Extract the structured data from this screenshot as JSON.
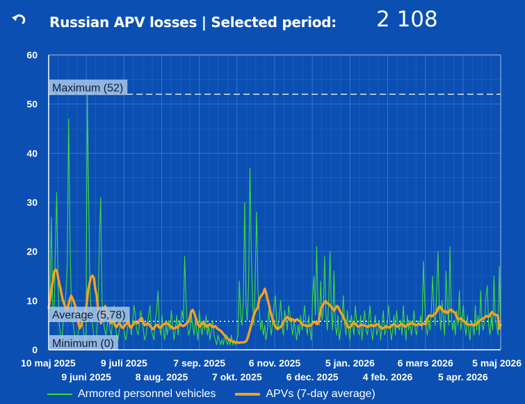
{
  "header": {
    "title": "Russian APV losses | Selected period:",
    "total": "2 108",
    "back_icon": "undo-arrow-icon"
  },
  "colors": {
    "background": "#0b4fb3",
    "daily_line": "#3ddc3a",
    "avg_line": "#f6a21d",
    "grid": "#3a78cf",
    "ref_label_bg": "#a9c5e6"
  },
  "chart_data": {
    "type": "line",
    "title": "",
    "xlabel": "",
    "ylabel": "",
    "ylim": [
      0,
      60
    ],
    "yticks": [
      "0",
      "10",
      "20",
      "30",
      "40",
      "50",
      "60"
    ],
    "date_range": [
      "2025-05-10",
      "2026-05-05"
    ],
    "xticks_row1": [
      {
        "date": "2025-05-10",
        "label": "10 maj 2025"
      },
      {
        "date": "2025-07-09",
        "label": "9 juli 2025"
      },
      {
        "date": "2025-09-07",
        "label": "7 sep. 2025"
      },
      {
        "date": "2025-11-06",
        "label": "6 nov. 2025"
      },
      {
        "date": "2026-01-05",
        "label": "5 jan. 2026"
      },
      {
        "date": "2026-03-06",
        "label": "6 mars 2026"
      },
      {
        "date": "2026-05-05",
        "label": "5 maj 2026"
      }
    ],
    "xticks_row2": [
      {
        "date": "2025-06-09",
        "label": "9 juni 2025"
      },
      {
        "date": "2025-08-08",
        "label": "8 aug. 2025"
      },
      {
        "date": "2025-10-07",
        "label": "7 okt. 2025"
      },
      {
        "date": "2025-12-06",
        "label": "6 dec. 2025"
      },
      {
        "date": "2026-02-04",
        "label": "4 feb. 2026"
      },
      {
        "date": "2026-04-05",
        "label": "5 apr. 2026"
      }
    ],
    "reference_lines": [
      {
        "name": "maximum",
        "label": "Maximum (52)",
        "value": 52,
        "style": "dashed"
      },
      {
        "name": "average",
        "label": "Average (5,78)",
        "value": 5.78,
        "style": "dotted"
      },
      {
        "name": "minimum",
        "label": "Minimum (0)",
        "value": 0,
        "style": "none"
      }
    ],
    "series": [
      {
        "name": "Armored personnel vehicles",
        "values": [
          9,
          12,
          27,
          8,
          6,
          20,
          32,
          14,
          5,
          3,
          2,
          6,
          8,
          12,
          18,
          47,
          22,
          9,
          6,
          4,
          2,
          1,
          3,
          5,
          8,
          6,
          4,
          2,
          3,
          52,
          31,
          12,
          7,
          5,
          2,
          1,
          3,
          8,
          22,
          31,
          10,
          6,
          4,
          3,
          5,
          8,
          4,
          3,
          6,
          9,
          5,
          3,
          2,
          4,
          6,
          8,
          5,
          3,
          2,
          4,
          7,
          5,
          3,
          6,
          9,
          7,
          4,
          3,
          5,
          8,
          6,
          4,
          2,
          3,
          5,
          7,
          9,
          4,
          3,
          2,
          6,
          8,
          12,
          5,
          3,
          7,
          4,
          2,
          5,
          3,
          6,
          4,
          8,
          5,
          2,
          4,
          7,
          3,
          6,
          5,
          8,
          6,
          19,
          10,
          5,
          3,
          4,
          7,
          5,
          3,
          6,
          4,
          2,
          8,
          5,
          3,
          6,
          4,
          7,
          3,
          5,
          2,
          4,
          6,
          3,
          2,
          1,
          3,
          2,
          1,
          2,
          1,
          3,
          2,
          1,
          2,
          1,
          3,
          1,
          2,
          1,
          2,
          3,
          14,
          7,
          5,
          10,
          30,
          9,
          6,
          14,
          37,
          20,
          9,
          5,
          16,
          28,
          12,
          8,
          4,
          6,
          3,
          5,
          2,
          4,
          8,
          5,
          3,
          6,
          9,
          11,
          6,
          4,
          7,
          10,
          5,
          3,
          8,
          6,
          4,
          9,
          7,
          5,
          3,
          6,
          4,
          2,
          5,
          3,
          7,
          4,
          6,
          9,
          5,
          3,
          7,
          4,
          2,
          11,
          15,
          7,
          21,
          9,
          5,
          14,
          6,
          8,
          19,
          7,
          4,
          10,
          20,
          8,
          4,
          16,
          5,
          3,
          7,
          2,
          4,
          6,
          11,
          5,
          3,
          8,
          4,
          2,
          7,
          5,
          3,
          9,
          6,
          4,
          3,
          7,
          2,
          5,
          8,
          4,
          3,
          6,
          9,
          4,
          2,
          5,
          7,
          3,
          4,
          6,
          2,
          5,
          8,
          3,
          4,
          6,
          9,
          5,
          2,
          4,
          7,
          3,
          8,
          5,
          4,
          6,
          3,
          9,
          5,
          2,
          7,
          4,
          6,
          3,
          5,
          8,
          4,
          3,
          6,
          5,
          7,
          4,
          18,
          10,
          5,
          3,
          6,
          4,
          8,
          15,
          7,
          5,
          12,
          20,
          8,
          4,
          10,
          6,
          3,
          16,
          9,
          5,
          21,
          7,
          4,
          6,
          3,
          8,
          5,
          12,
          4,
          6,
          9,
          5,
          3,
          7,
          4,
          2,
          6,
          5,
          3,
          9,
          4,
          7,
          3,
          12,
          5,
          4,
          6,
          11,
          13,
          5,
          3,
          7,
          4,
          15,
          6,
          5,
          3,
          17,
          4
        ]
      },
      {
        "name": "APVs (7-day average)",
        "values": [
          8.5,
          10.2,
          12.5,
          14.1,
          16.0,
          16.3,
          15.8,
          14.2,
          12.9,
          11.5,
          10.1,
          9.3,
          8.5,
          7.9,
          9.2,
          10.3,
          11.0,
          10.4,
          9.6,
          8.7,
          7.2,
          5.5,
          4.4,
          4.9,
          6.1,
          5.9,
          7.2,
          9.5,
          12.3,
          13.6,
          14.8,
          15.1,
          14.6,
          12.4,
          11.0,
          8.2,
          6.0,
          5.4,
          6.8,
          8.3,
          8.9,
          8.0,
          7.1,
          6.0,
          5.4,
          5.8,
          5.7,
          5.0,
          4.6,
          5.1,
          5.4,
          5.0,
          4.5,
          4.5,
          5.0,
          5.3,
          5.7,
          5.0,
          4.5,
          4.8,
          5.2,
          5.7,
          5.5,
          5.4,
          5.9,
          6.3,
          6.4,
          5.6,
          5.0,
          5.1,
          5.4,
          5.2,
          4.8,
          4.4,
          4.2,
          4.6,
          5.0,
          5.1,
          4.6,
          4.5,
          4.8,
          5.1,
          5.2,
          5.5,
          5.3,
          5.1,
          4.9,
          4.6,
          4.3,
          4.4,
          4.6,
          4.5,
          4.8,
          5.2,
          5.0,
          4.8,
          4.9,
          5.2,
          5.4,
          5.7,
          6.5,
          7.9,
          8.1,
          7.5,
          6.6,
          5.7,
          5.0,
          4.7,
          5.2,
          5.6,
          5.4,
          4.9,
          4.7,
          5.0,
          5.2,
          4.9,
          4.6,
          4.7,
          4.8,
          4.4,
          4.2,
          4.0,
          3.8,
          3.5,
          3.1,
          2.9,
          2.5,
          2.2,
          2.0,
          1.9,
          1.7,
          1.6,
          1.5,
          1.5,
          1.5,
          1.4,
          1.5,
          1.5,
          1.5,
          1.6,
          1.8,
          2.5,
          3.5,
          4.6,
          5.6,
          6.8,
          7.6,
          8.2,
          8.5,
          10.2,
          10.8,
          11.2,
          11.6,
          12.4,
          11.5,
          10.2,
          9.1,
          7.7,
          6.8,
          5.8,
          5.0,
          4.5,
          4.2,
          4.4,
          4.6,
          4.9,
          5.5,
          6.1,
          6.4,
          6.7,
          6.4,
          6.0,
          6.3,
          6.1,
          5.9,
          6.1,
          6.2,
          5.9,
          5.8,
          5.4,
          5.1,
          5.0,
          4.9,
          4.8,
          4.9,
          4.9,
          5.1,
          5.4,
          5.7,
          5.5,
          5.2,
          5.6,
          7.2,
          8.4,
          9.1,
          9.5,
          9.9,
          9.5,
          9.4,
          9.1,
          8.7,
          8.4,
          8.0,
          8.4,
          8.9,
          8.7,
          8.0,
          7.5,
          7.1,
          6.4,
          5.8,
          5.1,
          4.6,
          4.5,
          4.8,
          5.2,
          5.5,
          5.3,
          5.0,
          4.7,
          4.8,
          5.0,
          5.1,
          5.0,
          4.9,
          4.8,
          4.6,
          4.9,
          5.0,
          5.0,
          4.8,
          4.9,
          5.1,
          5.2,
          4.9,
          4.6,
          4.3,
          4.4,
          4.6,
          4.8,
          4.6,
          4.5,
          4.7,
          5.0,
          5.2,
          5.1,
          4.8,
          4.7,
          4.9,
          5.1,
          5.3,
          5.0,
          4.7,
          4.8,
          5.1,
          5.2,
          5.3,
          5.4,
          5.3,
          5.1,
          5.0,
          5.1,
          5.2,
          5.1,
          5.0,
          5.3,
          5.3,
          5.2,
          6.2,
          6.9,
          7.0,
          6.8,
          6.9,
          7.3,
          7.4,
          7.9,
          8.6,
          8.8,
          8.3,
          8.0,
          7.7,
          7.9,
          7.5,
          7.6,
          8.1,
          8.2,
          7.8,
          7.7,
          7.4,
          6.6,
          6.3,
          6.2,
          6.4,
          6.0,
          5.8,
          5.6,
          5.2,
          5.2,
          5.1,
          5.1,
          5.2,
          4.9,
          5.2,
          5.3,
          5.5,
          5.9,
          6.1,
          6.3,
          6.4,
          6.7,
          6.9,
          6.7,
          6.8,
          7.4,
          7.7,
          7.3,
          7.1,
          7.1,
          6.9,
          4.3,
          5.1
        ]
      }
    ]
  },
  "legend": {
    "daily": "Armored personnel vehicles",
    "average": "APVs (7-day average)"
  }
}
